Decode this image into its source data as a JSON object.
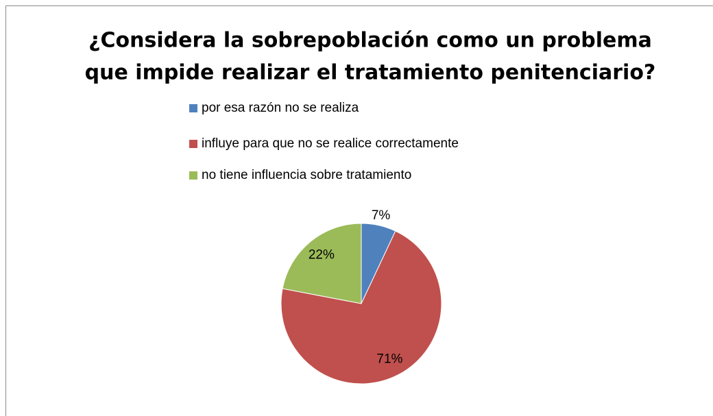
{
  "chart_data": {
    "type": "pie",
    "title": [
      "¿Considera la sobrepoblación como un problema",
      "que impide realizar el tratamiento penitenciario?"
    ],
    "categories": [
      "por esa razón no se realiza",
      "influye para que no se realice correctamente",
      "no tiene influencia sobre tratamiento"
    ],
    "values": [
      7,
      71,
      22
    ],
    "value_labels": [
      "7%",
      "71%",
      "22%"
    ],
    "colors": [
      "#4f81bd",
      "#c0504d",
      "#9bbb59"
    ],
    "legend": "top"
  }
}
